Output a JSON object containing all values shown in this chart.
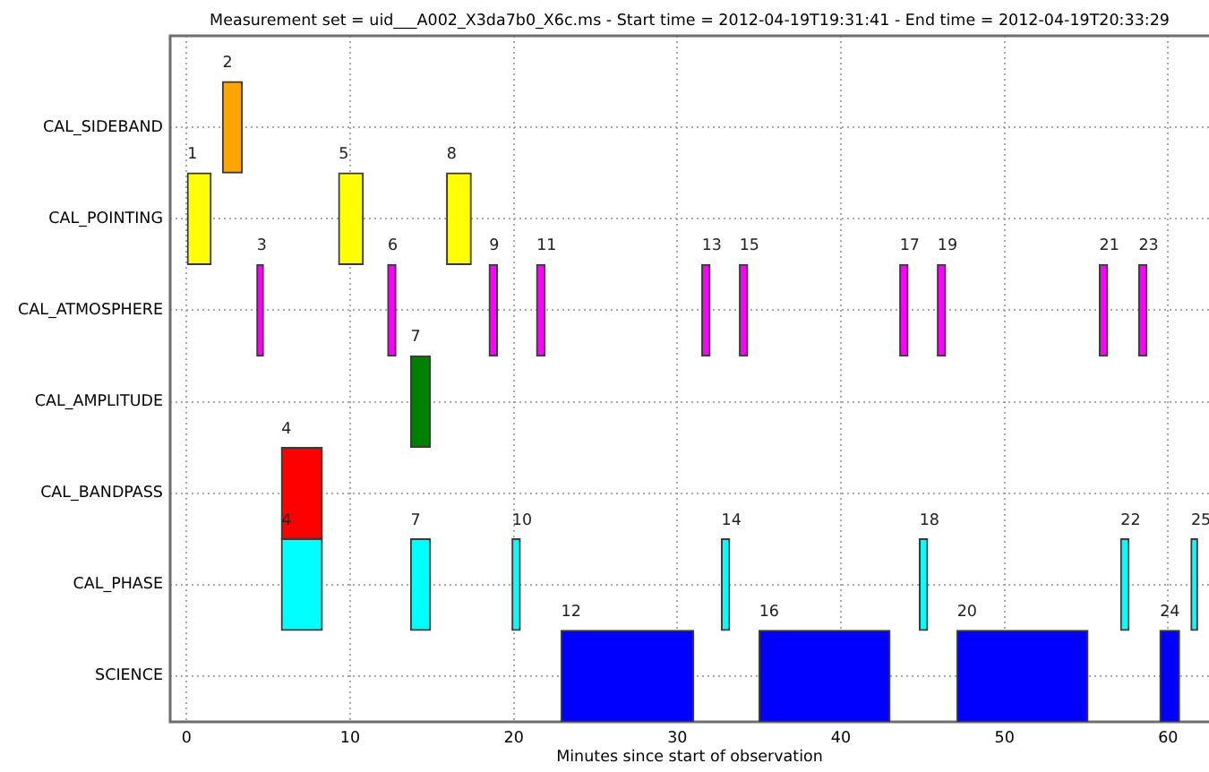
{
  "chart_data": {
    "type": "bar",
    "orientation": "horizontal",
    "title": "Measurement set = uid___A002_X3da7b0_X6c.ms - Start time = 2012-04-19T19:31:41 - End time = 2012-04-19T20:33:29",
    "xlabel": "Minutes since start of observation",
    "categories": [
      "CAL_SIDEBAND",
      "CAL_POINTING",
      "CAL_ATMOSPHERE",
      "CAL_AMPLITUDE",
      "CAL_BANDPASS",
      "CAL_PHASE",
      "SCIENCE"
    ],
    "xlim": [
      -1,
      62.5
    ],
    "xticks": [
      0,
      10,
      20,
      30,
      40,
      50,
      60
    ],
    "grid": true,
    "series": [
      {
        "name": "1",
        "color": "#ffff00",
        "values": [
          null,
          1.5,
          null,
          null,
          null,
          null,
          null
        ],
        "base": [
          null,
          0,
          null,
          null,
          null,
          null,
          null
        ]
      },
      {
        "name": "2",
        "color": "#ffa500",
        "values": [
          1.2,
          null,
          null,
          null,
          null,
          null,
          null
        ],
        "base": [
          2.2,
          null,
          null,
          null,
          null,
          null,
          null
        ]
      },
      {
        "name": "3",
        "color": "#ff00ff",
        "values": [
          null,
          null,
          0.4,
          null,
          null,
          null,
          null
        ],
        "base": [
          null,
          null,
          4.3,
          null,
          null,
          null,
          null
        ]
      },
      {
        "name": "4",
        "colors": [
          null,
          null,
          null,
          null,
          "#ff0000",
          "#00ffff",
          null
        ],
        "values": [
          null,
          null,
          null,
          null,
          2.5,
          2.5,
          null
        ],
        "base": [
          null,
          null,
          null,
          null,
          5.8,
          5.8,
          null
        ]
      },
      {
        "name": "5",
        "color": "#ffff00",
        "values": [
          null,
          1.5,
          null,
          null,
          null,
          null,
          null
        ],
        "base": [
          null,
          9.3,
          null,
          null,
          null,
          null,
          null
        ]
      },
      {
        "name": "6",
        "color": "#ff00ff",
        "values": [
          null,
          null,
          0.5,
          null,
          null,
          null,
          null
        ],
        "base": [
          null,
          null,
          12.3,
          null,
          null,
          null,
          null
        ]
      },
      {
        "name": "7",
        "colors": [
          null,
          null,
          null,
          "#008000",
          null,
          "#00ffff",
          null
        ],
        "values": [
          null,
          null,
          null,
          1.2,
          null,
          1.2,
          null
        ],
        "base": [
          null,
          null,
          null,
          13.7,
          null,
          13.7,
          null
        ]
      },
      {
        "name": "8",
        "color": "#ffff00",
        "values": [
          null,
          1.5,
          null,
          null,
          null,
          null,
          null
        ],
        "base": [
          null,
          15.9,
          null,
          null,
          null,
          null,
          null
        ]
      },
      {
        "name": "9",
        "color": "#ff00ff",
        "values": [
          null,
          null,
          0.5,
          null,
          null,
          null,
          null
        ],
        "base": [
          null,
          null,
          18.5,
          null,
          null,
          null,
          null
        ]
      },
      {
        "name": "10",
        "color": "#00ffff",
        "values": [
          null,
          null,
          null,
          null,
          null,
          0.5,
          null
        ],
        "base": [
          null,
          null,
          null,
          null,
          null,
          19.9,
          null
        ]
      },
      {
        "name": "11",
        "color": "#ff00ff",
        "values": [
          null,
          null,
          0.5,
          null,
          null,
          null,
          null
        ],
        "base": [
          null,
          null,
          21.4,
          null,
          null,
          null,
          null
        ]
      },
      {
        "name": "12",
        "color": "#0000ff",
        "values": [
          null,
          null,
          null,
          null,
          null,
          null,
          8.1
        ],
        "base": [
          null,
          null,
          null,
          null,
          null,
          null,
          22.9
        ]
      },
      {
        "name": "13",
        "color": "#ff00ff",
        "values": [
          null,
          null,
          0.5,
          null,
          null,
          null,
          null
        ],
        "base": [
          null,
          null,
          31.5,
          null,
          null,
          null,
          null
        ]
      },
      {
        "name": "14",
        "color": "#00ffff",
        "values": [
          null,
          null,
          null,
          null,
          null,
          0.5,
          null
        ],
        "base": [
          null,
          null,
          null,
          null,
          null,
          32.7,
          null
        ]
      },
      {
        "name": "15",
        "color": "#ff00ff",
        "values": [
          null,
          null,
          0.5,
          null,
          null,
          null,
          null
        ],
        "base": [
          null,
          null,
          33.8,
          null,
          null,
          null,
          null
        ]
      },
      {
        "name": "16",
        "color": "#0000ff",
        "values": [
          null,
          null,
          null,
          null,
          null,
          null,
          8.0
        ],
        "base": [
          null,
          null,
          null,
          null,
          null,
          null,
          35.0
        ]
      },
      {
        "name": "17",
        "color": "#ff00ff",
        "values": [
          null,
          null,
          0.5,
          null,
          null,
          null,
          null
        ],
        "base": [
          null,
          null,
          43.6,
          null,
          null,
          null,
          null
        ]
      },
      {
        "name": "18",
        "color": "#00ffff",
        "values": [
          null,
          null,
          null,
          null,
          null,
          0.5,
          null
        ],
        "base": [
          null,
          null,
          null,
          null,
          null,
          44.8,
          null
        ]
      },
      {
        "name": "19",
        "color": "#ff00ff",
        "values": [
          null,
          null,
          0.5,
          null,
          null,
          null,
          null
        ],
        "base": [
          null,
          null,
          45.9,
          null,
          null,
          null,
          null
        ]
      },
      {
        "name": "20",
        "color": "#0000ff",
        "values": [
          null,
          null,
          null,
          null,
          null,
          null,
          8.0
        ],
        "base": [
          null,
          null,
          null,
          null,
          null,
          null,
          47.1
        ]
      },
      {
        "name": "21",
        "color": "#ff00ff",
        "values": [
          null,
          null,
          0.5,
          null,
          null,
          null,
          null
        ],
        "base": [
          null,
          null,
          55.8,
          null,
          null,
          null,
          null
        ]
      },
      {
        "name": "22",
        "color": "#00ffff",
        "values": [
          null,
          null,
          null,
          null,
          null,
          0.5,
          null
        ],
        "base": [
          null,
          null,
          null,
          null,
          null,
          57.1,
          null
        ]
      },
      {
        "name": "23",
        "color": "#ff00ff",
        "values": [
          null,
          null,
          0.5,
          null,
          null,
          null,
          null
        ],
        "base": [
          null,
          null,
          58.2,
          null,
          null,
          null,
          null
        ]
      },
      {
        "name": "24",
        "color": "#0000ff",
        "values": [
          null,
          null,
          null,
          null,
          null,
          null,
          1.2
        ],
        "base": [
          null,
          null,
          null,
          null,
          null,
          null,
          59.5
        ]
      },
      {
        "name": "25",
        "color": "#00ffff",
        "values": [
          null,
          null,
          null,
          null,
          null,
          0.4,
          null
        ],
        "base": [
          null,
          null,
          null,
          null,
          null,
          61.4,
          null
        ]
      }
    ]
  }
}
